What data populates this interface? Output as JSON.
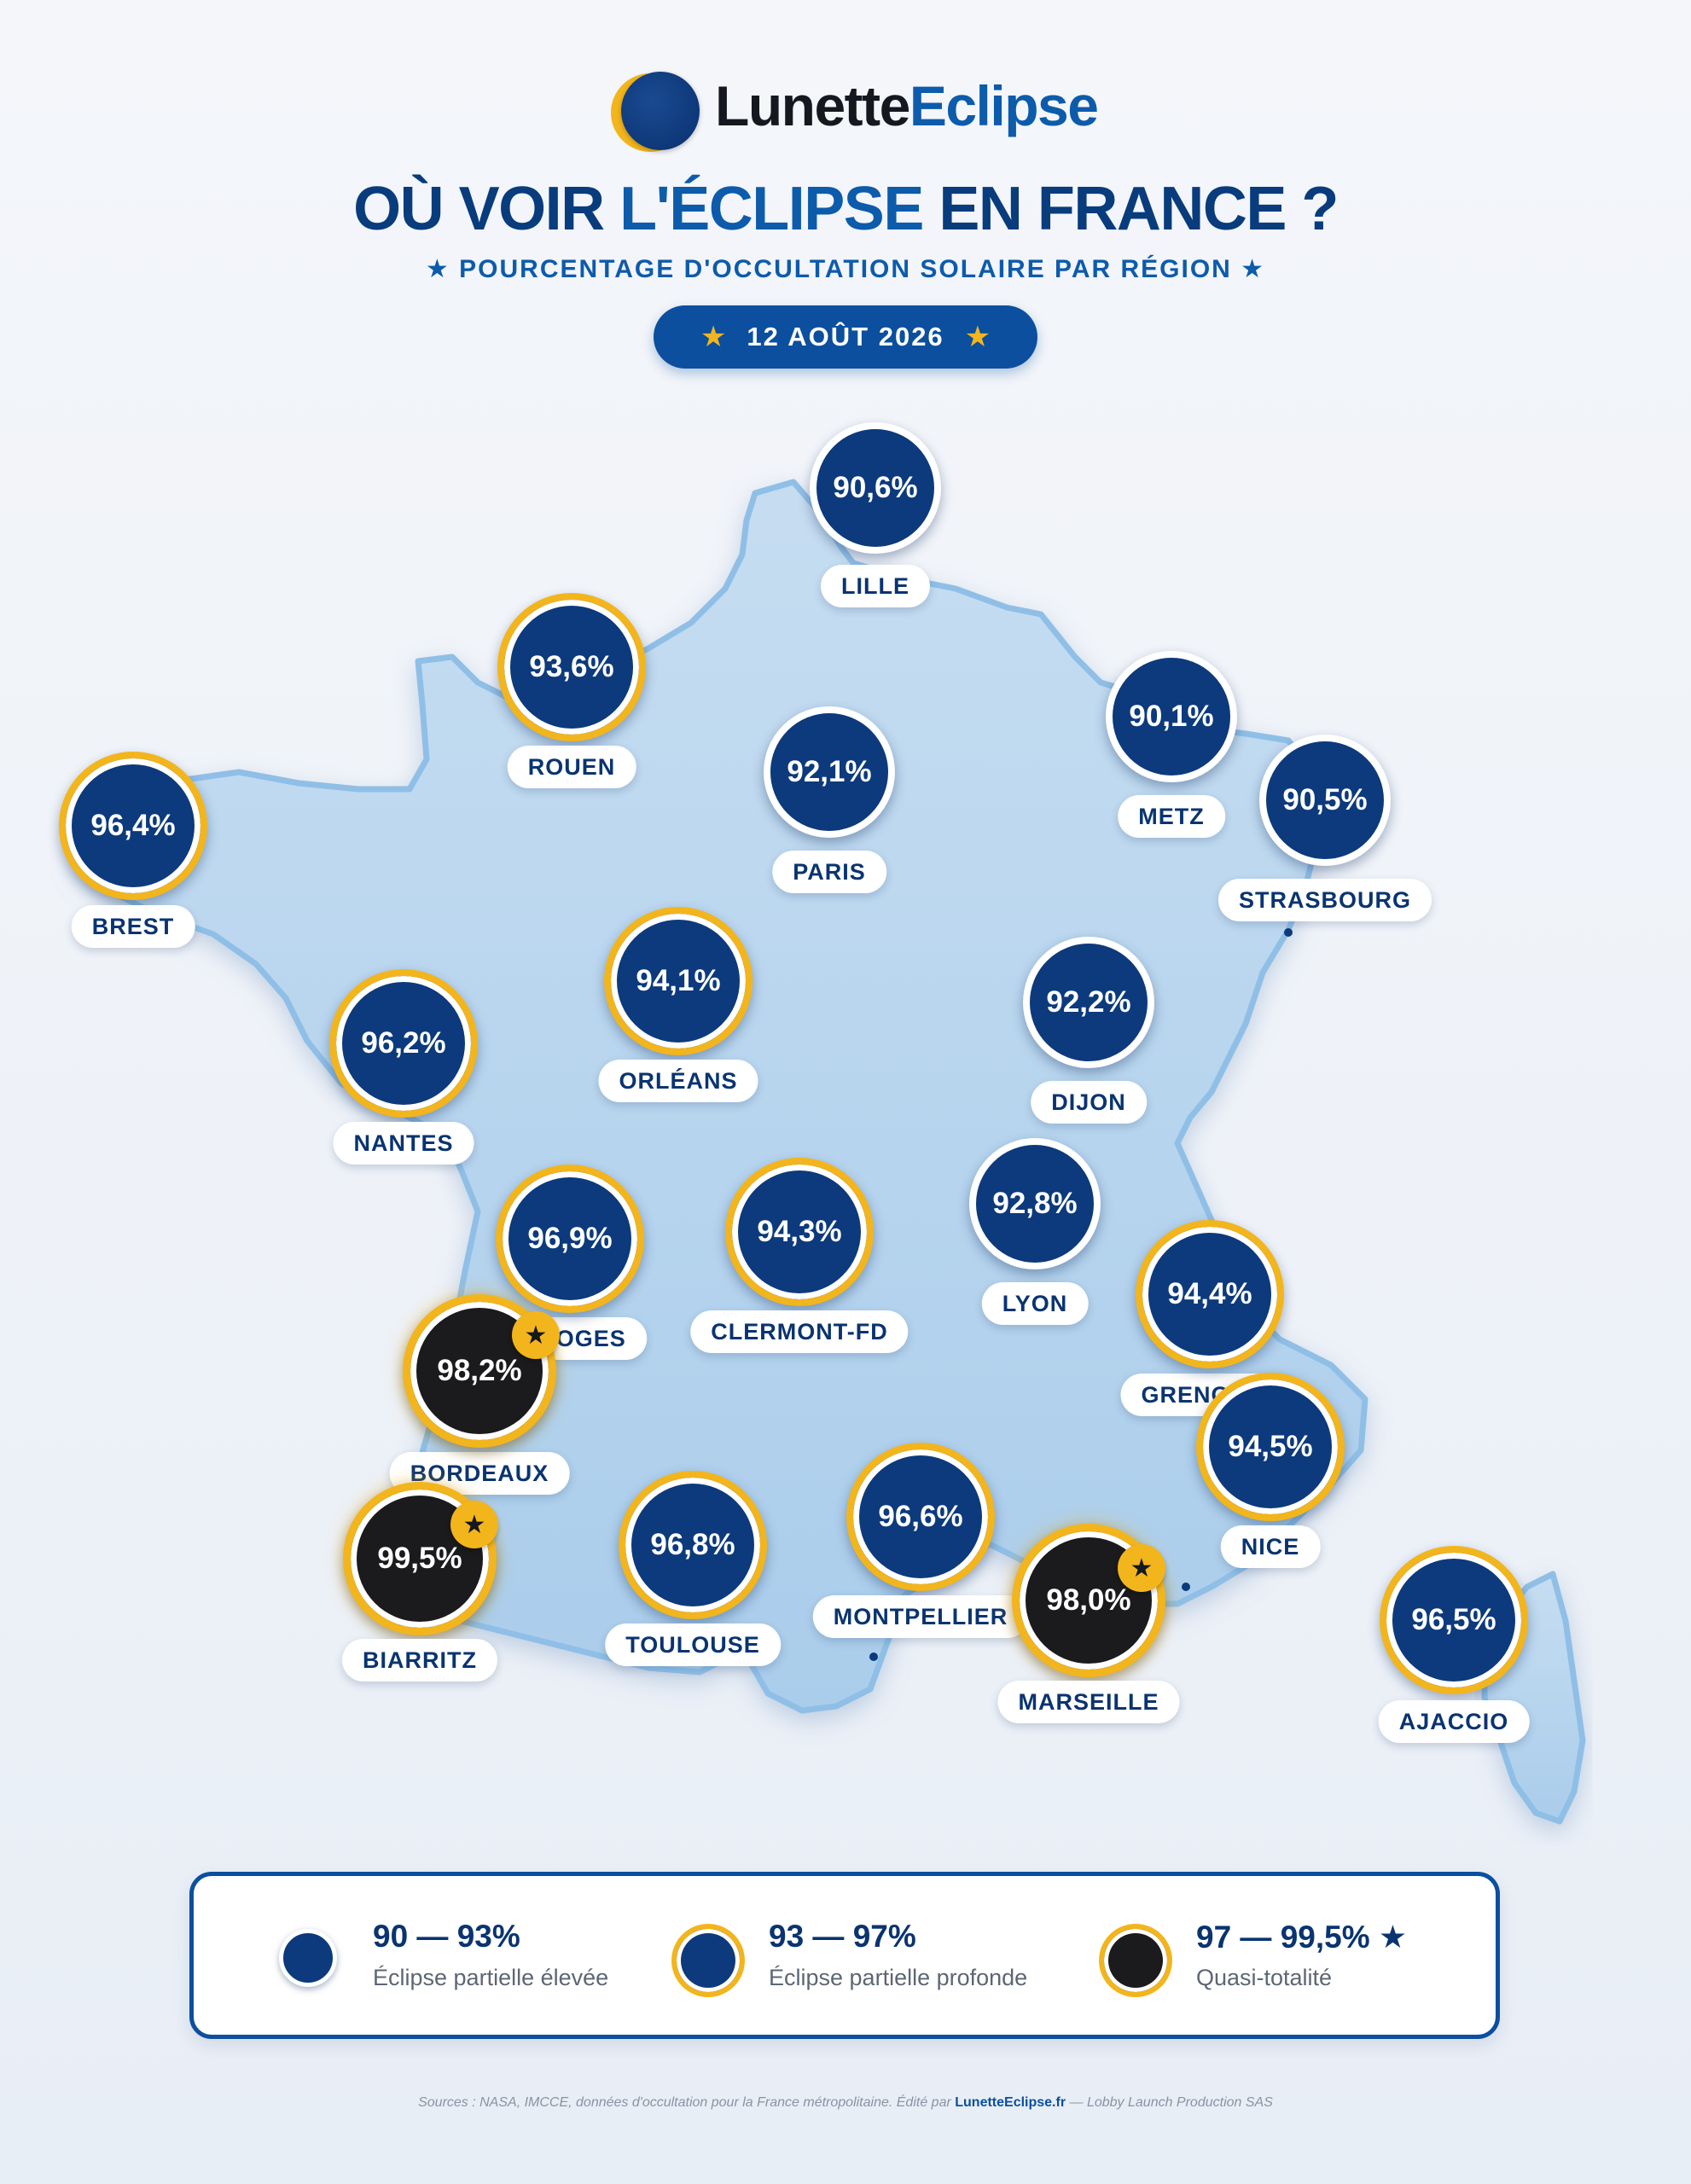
{
  "brand": {
    "name_part1": "Lunette",
    "name_part2": "Eclipse"
  },
  "header": {
    "title_part1": "OÙ VOIR ",
    "title_accent": "L'ÉCLIPSE",
    "title_part2": " EN FRANCE ?",
    "subtitle": "★ POURCENTAGE D'OCCULTATION SOLAIRE PAR RÉGION ★",
    "date_star": "★",
    "date": "12 AOÛT 2026"
  },
  "colors": {
    "navy": "#0c3a7c",
    "gold": "#f3b51c",
    "black": "#1b1b1d",
    "map_fill": "#b7d5ef",
    "title": "#083c7c",
    "accent": "#0d5bab"
  },
  "cities": [
    {
      "id": "lille",
      "name": "LILLE",
      "value": "90,6%",
      "level": 1,
      "star": false
    },
    {
      "id": "rouen",
      "name": "ROUEN",
      "value": "93,6%",
      "level": 2,
      "star": false
    },
    {
      "id": "metz",
      "name": "METZ",
      "value": "90,1%",
      "level": 1,
      "star": false
    },
    {
      "id": "paris",
      "name": "PARIS",
      "value": "92,1%",
      "level": 1,
      "star": false
    },
    {
      "id": "strasbourg",
      "name": "STRASBOURG",
      "value": "90,5%",
      "level": 1,
      "star": false
    },
    {
      "id": "brest",
      "name": "BREST",
      "value": "96,4%",
      "level": 2,
      "star": false
    },
    {
      "id": "orleans",
      "name": "ORLÉANS",
      "value": "94,1%",
      "level": 2,
      "star": false
    },
    {
      "id": "dijon",
      "name": "DIJON",
      "value": "92,2%",
      "level": 1,
      "star": false
    },
    {
      "id": "nantes",
      "name": "NANTES",
      "value": "96,2%",
      "level": 2,
      "star": false
    },
    {
      "id": "limoges",
      "name": "LIMOGES",
      "value": "96,9%",
      "level": 2,
      "star": false
    },
    {
      "id": "clermont",
      "name": "CLERMONT-FD",
      "value": "94,3%",
      "level": 2,
      "star": false
    },
    {
      "id": "lyon",
      "name": "LYON",
      "value": "92,8%",
      "level": 1,
      "star": false
    },
    {
      "id": "grenoble",
      "name": "GRENOBLE",
      "value": "94,4%",
      "level": 2,
      "star": false
    },
    {
      "id": "bordeaux",
      "name": "BORDEAUX",
      "value": "98,2%",
      "level": 3,
      "star": true
    },
    {
      "id": "nice",
      "name": "NICE",
      "value": "94,5%",
      "level": 2,
      "star": false
    },
    {
      "id": "biarritz",
      "name": "BIARRITZ",
      "value": "99,5%",
      "level": 3,
      "star": true
    },
    {
      "id": "toulouse",
      "name": "TOULOUSE",
      "value": "96,8%",
      "level": 2,
      "star": false
    },
    {
      "id": "montpellier",
      "name": "MONTPELLIER",
      "value": "96,6%",
      "level": 2,
      "star": false
    },
    {
      "id": "marseille",
      "name": "MARSEILLE",
      "value": "98,0%",
      "level": 3,
      "star": true
    },
    {
      "id": "ajaccio",
      "name": "AJACCIO",
      "value": "96,5%",
      "level": 2,
      "star": false
    }
  ],
  "legend": [
    {
      "range": "90 — 93%",
      "desc": "Éclipse partielle élevée",
      "level": 1
    },
    {
      "range": "93 — 97%",
      "desc": "Éclipse partielle profonde",
      "level": 2
    },
    {
      "range": "97 — 99,5% ★",
      "desc": "Quasi-totalité",
      "level": 3
    }
  ],
  "footer": {
    "text_before": "Sources : NASA, IMCCE, données d'occultation pour la France métropolitaine. Édité par ",
    "brand": "LunetteEclipse.fr",
    "text_after": " — Lobby Launch Production SAS"
  }
}
